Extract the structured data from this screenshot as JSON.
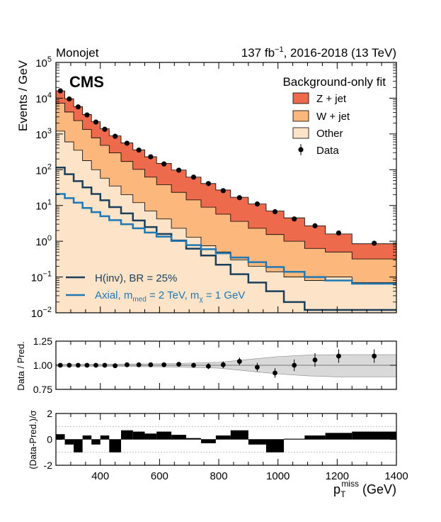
{
  "header": {
    "left": "Monojet",
    "right_prefix": "137 fb",
    "right_sup": "−1",
    "right_suffix": ", 2016-2018 (13 TeV)"
  },
  "cms_label": "CMS",
  "legend": {
    "title": "Background-only fit",
    "entries": [
      {
        "label": "Z + jet",
        "color": "#ed6a4c"
      },
      {
        "label": "W + jet",
        "color": "#fbb77c"
      },
      {
        "label": "Other",
        "color": "#fde4c8"
      },
      {
        "label": "Data",
        "color": "#000000"
      }
    ],
    "signals": [
      {
        "label": "H(inv), BR = 25%",
        "color": "#1b3e5b"
      },
      {
        "label": "Axial, m",
        "sub1": "med",
        "mid": " = 2 TeV, m",
        "sub2": "χ",
        "end": " = 1 GeV",
        "color": "#1f77b4"
      }
    ]
  },
  "colors": {
    "zjet": "#ed6a4c",
    "wjet": "#fbb77c",
    "other": "#fde4c8",
    "hinv": "#1b3e5b",
    "axial": "#1f77b4",
    "band": "#d9d9d9"
  },
  "chart_data": [
    {
      "type": "bar",
      "subtype": "stacked-histogram",
      "ylabel": "Events / GeV",
      "yscale": "log",
      "ylim": [
        0.01,
        100000
      ],
      "xlim": [
        250,
        1400
      ],
      "y_tick_labels": [
        "10^-2",
        "10^-1",
        "10^0",
        "10^1",
        "10^2",
        "10^3",
        "10^4",
        "10^5"
      ],
      "bin_edges": [
        250,
        280,
        310,
        340,
        370,
        400,
        430,
        470,
        510,
        550,
        590,
        640,
        690,
        740,
        790,
        840,
        900,
        960,
        1020,
        1090,
        1160,
        1250,
        1400
      ],
      "series": [
        {
          "name": "Other",
          "values": [
            1200,
            600,
            350,
            180,
            100,
            58,
            35,
            20,
            12,
            7,
            4.2,
            2.3,
            1.3,
            0.75,
            0.5,
            0.3,
            0.2,
            0.14,
            0.1,
            0.08,
            0.1,
            0.07
          ]
        },
        {
          "name": "W + jet",
          "values": [
            6000,
            3500,
            2000,
            1150,
            680,
            420,
            260,
            150,
            90,
            55,
            34,
            21,
            13,
            8.2,
            5.2,
            3.3,
            2.1,
            1.4,
            0.9,
            0.55,
            0.4,
            0.25
          ]
        },
        {
          "name": "Z + jet",
          "values": [
            16000,
            9600,
            5800,
            3500,
            2200,
            1400,
            880,
            560,
            360,
            230,
            150,
            98,
            62,
            41,
            27,
            17,
            11,
            7,
            4.5,
            2.7,
            1.6,
            0.85
          ]
        },
        {
          "name": "H(inv), BR = 25%",
          "values": [
            115,
            75,
            48,
            32,
            21,
            14,
            9,
            6,
            3.8,
            2.5,
            1.6,
            1.05,
            0.62,
            0.4,
            0.22,
            0.12,
            0.07,
            0.04,
            0.02,
            0.012,
            0.012,
            0.012
          ]
        },
        {
          "name": "Axial, m_med = 2 TeV, m_χ = 1 GeV",
          "values": [
            21,
            16,
            12,
            8.5,
            6.5,
            5,
            3.9,
            3,
            2.3,
            1.75,
            1.35,
            1.02,
            0.78,
            0.6,
            0.46,
            0.35,
            0.26,
            0.19,
            0.14,
            0.1,
            0.08,
            0.065
          ]
        }
      ],
      "data": {
        "name": "Data",
        "values": [
          16000,
          9500,
          5700,
          3400,
          2150,
          1350,
          860,
          550,
          355,
          230,
          145,
          97,
          62,
          41,
          26,
          16.5,
          11,
          6.7,
          4.2,
          2.7,
          1.7,
          0.88
        ]
      }
    },
    {
      "type": "scatter",
      "ylabel": "Data / Pred.",
      "ylim": [
        0.75,
        1.25
      ],
      "y_tick_labels": [
        "0.75",
        "1.00",
        "1.25"
      ],
      "x": [
        265,
        295,
        325,
        355,
        385,
        415,
        450,
        490,
        530,
        570,
        615,
        665,
        715,
        765,
        815,
        870,
        930,
        990,
        1055,
        1125,
        1205,
        1325
      ],
      "values": [
        1.0,
        1.0,
        1.0,
        1.0,
        1.0,
        1.0,
        0.995,
        1.005,
        1.005,
        1.005,
        1.005,
        1.01,
        1.0,
        0.99,
        1.005,
        1.04,
        0.98,
        0.92,
        1.0,
        1.055,
        1.095,
        1.095
      ],
      "errors": [
        0.008,
        0.008,
        0.008,
        0.009,
        0.01,
        0.011,
        0.012,
        0.013,
        0.015,
        0.017,
        0.019,
        0.022,
        0.026,
        0.03,
        0.035,
        0.04,
        0.045,
        0.05,
        0.06,
        0.07,
        0.07,
        0.07
      ],
      "band_x": [
        250,
        400,
        600,
        800,
        900,
        1000,
        1100,
        1200,
        1400
      ],
      "band_lo": [
        0.988,
        0.988,
        0.985,
        0.97,
        0.94,
        0.91,
        0.89,
        0.88,
        0.88
      ],
      "band_hi": [
        1.012,
        1.012,
        1.015,
        1.03,
        1.06,
        1.09,
        1.105,
        1.11,
        1.11
      ]
    },
    {
      "type": "bar",
      "ylabel": "(Data-Pred.)/σ",
      "xlabel": "p_T^miss (GeV)",
      "ylim": [
        -2,
        2
      ],
      "y_tick_labels": [
        "-2",
        "0",
        "2"
      ],
      "x_tick_labels": [
        "400",
        "600",
        "800",
        "1000",
        "1200",
        "1400"
      ],
      "bin_edges": [
        250,
        280,
        310,
        340,
        370,
        400,
        430,
        470,
        510,
        550,
        590,
        640,
        690,
        740,
        790,
        840,
        900,
        960,
        1020,
        1090,
        1160,
        1250,
        1400
      ],
      "values": [
        0.4,
        -0.4,
        -1.0,
        0.3,
        -0.4,
        0.3,
        -1.0,
        0.7,
        0.6,
        0.45,
        0.6,
        0.35,
        0.1,
        -0.3,
        0.3,
        0.7,
        -0.4,
        -1.0,
        0.05,
        0.3,
        0.5,
        0.6
      ]
    }
  ],
  "xlabel": {
    "main": "p",
    "sub": "T",
    "sup": "miss",
    "unit": " (GeV)"
  },
  "ratio_ylabel": "Data / Pred.",
  "pull_ylabel": "(Data-Pred.)/σ",
  "main_ylabel": "Events / GeV"
}
